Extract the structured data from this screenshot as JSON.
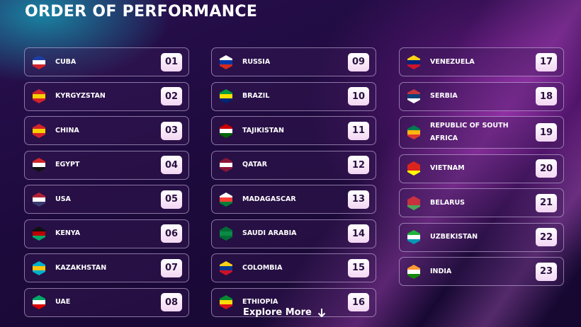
{
  "header": {
    "title": "ORDER OF PERFORMANCE"
  },
  "columns": [
    [
      {
        "country": "CUBA",
        "order": "01"
      },
      {
        "country": "KYRGYZSTAN",
        "order": "02"
      },
      {
        "country": "CHINA",
        "order": "03"
      },
      {
        "country": "EGYPT",
        "order": "04"
      },
      {
        "country": "USA",
        "order": "05"
      },
      {
        "country": "KENYA",
        "order": "06"
      },
      {
        "country": "KAZAKHSTAN",
        "order": "07"
      },
      {
        "country": "UAE",
        "order": "08"
      }
    ],
    [
      {
        "country": "RUSSIA",
        "order": "09"
      },
      {
        "country": "BRAZIL",
        "order": "10"
      },
      {
        "country": "TAJIKISTAN",
        "order": "11"
      },
      {
        "country": "QATAR",
        "order": "12"
      },
      {
        "country": "MADAGASCAR",
        "order": "13"
      },
      {
        "country": "SAUDI ARABIA",
        "order": "14"
      },
      {
        "country": "COLOMBIA",
        "order": "15"
      },
      {
        "country": "ETHIOPIA",
        "order": "16"
      }
    ],
    [
      {
        "country": "VENEZUELA",
        "order": "17"
      },
      {
        "country": "SERBIA",
        "order": "18"
      },
      {
        "country": "REPUBLIC OF SOUTH AFRICA",
        "order": "19"
      },
      {
        "country": "VIETNAM",
        "order": "20"
      },
      {
        "country": "BELARUS",
        "order": "21"
      },
      {
        "country": "UZBEKISTAN",
        "order": "22"
      },
      {
        "country": "INDIA",
        "order": "23"
      }
    ]
  ],
  "footer": {
    "link": "Explore More"
  }
}
